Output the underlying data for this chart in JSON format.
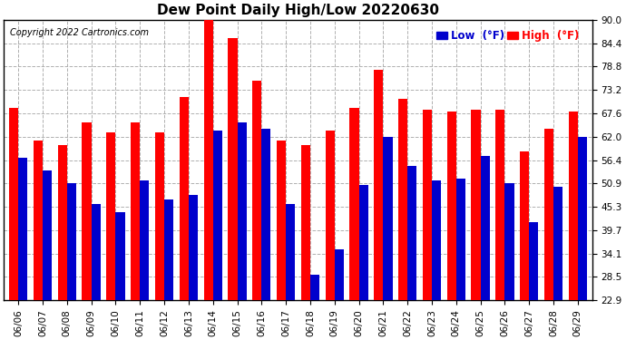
{
  "title": "Dew Point Daily High/Low 20220630",
  "copyright": "Copyright 2022 Cartronics.com",
  "legend_low": "Low  (°F)",
  "legend_high": "High  (°F)",
  "dates": [
    "06/06",
    "06/07",
    "06/08",
    "06/09",
    "06/10",
    "06/11",
    "06/12",
    "06/13",
    "06/14",
    "06/15",
    "06/16",
    "06/17",
    "06/18",
    "06/19",
    "06/20",
    "06/21",
    "06/22",
    "06/23",
    "06/24",
    "06/25",
    "06/26",
    "06/27",
    "06/28",
    "06/29"
  ],
  "high": [
    69.0,
    61.0,
    60.0,
    65.5,
    63.0,
    65.5,
    63.0,
    71.5,
    91.0,
    85.5,
    75.5,
    61.0,
    60.0,
    63.5,
    69.0,
    78.0,
    71.0,
    68.5,
    68.0,
    68.5,
    68.5,
    58.5,
    64.0,
    68.0
  ],
  "low": [
    57.0,
    54.0,
    51.0,
    46.0,
    44.0,
    51.5,
    47.0,
    48.0,
    63.5,
    65.5,
    64.0,
    46.0,
    29.0,
    35.0,
    50.5,
    62.0,
    55.0,
    51.5,
    52.0,
    57.5,
    51.0,
    41.5,
    50.0,
    62.0
  ],
  "ylim": [
    22.9,
    90.0
  ],
  "yticks": [
    22.9,
    28.5,
    34.1,
    39.7,
    45.3,
    50.9,
    56.4,
    62.0,
    67.6,
    73.2,
    78.8,
    84.4,
    90.0
  ],
  "bar_width": 0.38,
  "high_color": "#ff0000",
  "low_color": "#0000cc",
  "bg_color": "#ffffff",
  "grid_color": "#b0b0b0",
  "title_fontsize": 11,
  "tick_fontsize": 7.5,
  "label_fontsize": 8.5,
  "copyright_fontsize": 7,
  "figwidth": 6.9,
  "figheight": 3.75,
  "dpi": 100
}
